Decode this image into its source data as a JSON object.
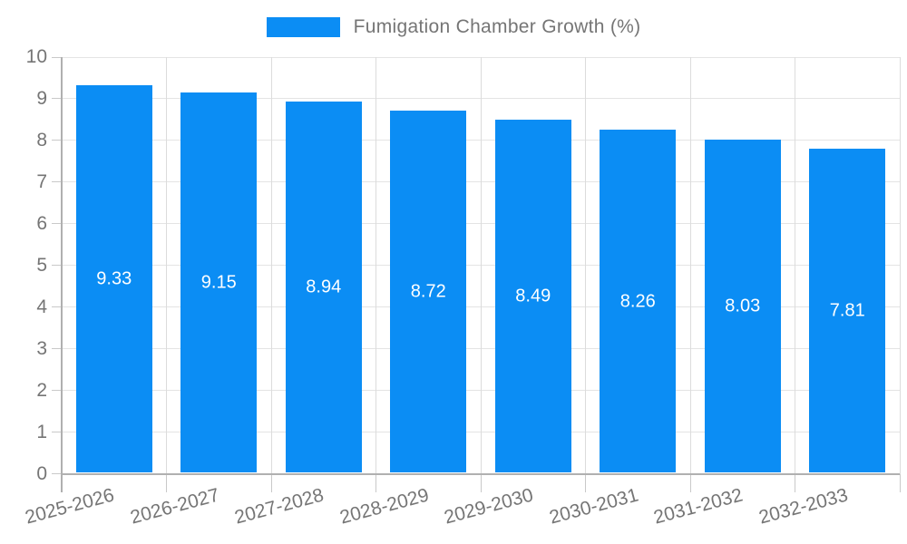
{
  "legend": {
    "label": "Fumigation Chamber Growth (%)"
  },
  "colors": {
    "bar": "#0b8df4",
    "bar_label_text": "#ffffff",
    "axis_text": "#757575",
    "axis_line": "#b0b0b0",
    "gridline": "#e4e4e4",
    "background": "#ffffff"
  },
  "chart_data": {
    "type": "bar",
    "title": "Fumigation Chamber Growth (%)",
    "categories": [
      "2025-2026",
      "2026-2027",
      "2027-2028",
      "2028-2029",
      "2029-2030",
      "2030-2031",
      "2031-2032",
      "2032-2033"
    ],
    "values": [
      9.33,
      9.15,
      8.94,
      8.72,
      8.49,
      8.26,
      8.03,
      7.81
    ],
    "value_labels": [
      "9.33",
      "9.15",
      "8.94",
      "8.72",
      "8.49",
      "8.26",
      "8.03",
      "7.81"
    ],
    "xlabel": "",
    "ylabel": "",
    "ylim": [
      0,
      10
    ],
    "y_ticks": [
      0,
      1,
      2,
      3,
      4,
      5,
      6,
      7,
      8,
      9,
      10
    ],
    "grid": true,
    "legend_position": "top-center",
    "value_labels_inside_bars": true,
    "x_label_rotation_deg": -15
  }
}
